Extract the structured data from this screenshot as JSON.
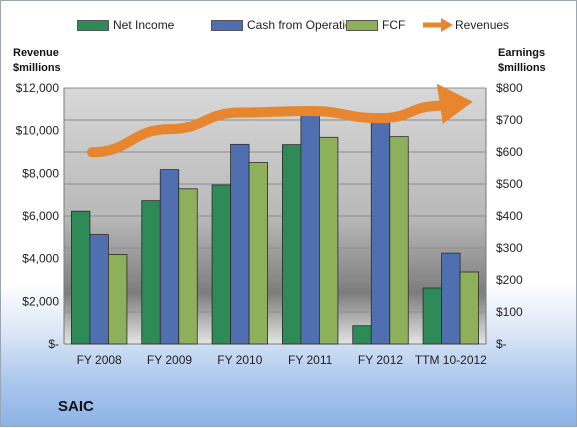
{
  "chart_data": {
    "type": "bar",
    "categories": [
      "FY 2008",
      "FY 2009",
      "FY 2010",
      "FY 2011",
      "FY 2012",
      "TTM 10-2012"
    ],
    "series": [
      {
        "name": "Net Income",
        "axis": "right",
        "color": "#2e8b57",
        "values": [
          415,
          448,
          497,
          623,
          57,
          175
        ]
      },
      {
        "name": "Cash from Operations",
        "axis": "right",
        "color": "#4f6fb0",
        "values": [
          342,
          545,
          624,
          716,
          712,
          284
        ]
      },
      {
        "name": "FCF",
        "axis": "right",
        "color": "#8fb05a",
        "values": [
          280,
          485,
          567,
          646,
          648,
          225
        ]
      },
      {
        "name": "Revenues",
        "axis": "left",
        "type": "arrow",
        "color": "#e8852f",
        "values": [
          8990,
          10070,
          10850,
          10920,
          10585,
          11170
        ]
      }
    ],
    "yleft": {
      "title_line1": "Revenue",
      "title_line2": "$millions",
      "ylim": [
        0,
        12000
      ],
      "ticks": [
        "$12,000",
        "$10,000",
        "$8,000",
        "$6,000",
        "$4,000",
        "$2,000",
        "$-"
      ]
    },
    "yright": {
      "title_line1": "Earnings",
      "title_line2": "$millions",
      "ylim": [
        0,
        800
      ],
      "ticks": [
        "$800",
        "$700",
        "$600",
        "$500",
        "$400",
        "$300",
        "$200",
        "$100",
        "$-"
      ]
    },
    "legend_position": "top",
    "grid": true,
    "company": "SAIC"
  }
}
